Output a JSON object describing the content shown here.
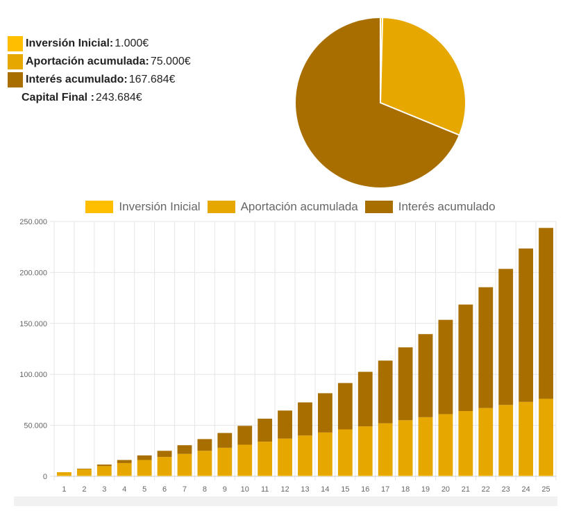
{
  "summary": {
    "initial_label": "Inversión Inicial:",
    "initial_value": "1.000€",
    "contrib_label": "Aportación acumulada:",
    "contrib_value": "75.000€",
    "interest_label": "Interés acumulado:",
    "interest_value": "167.684€",
    "final_label": "Capital Final :",
    "final_value": "243.684€"
  },
  "colors": {
    "initial": "#FFBE00",
    "contrib": "#E6A800",
    "interest": "#A86E00",
    "grid": "#e5e5e5",
    "tick": "#666666"
  },
  "chart_data": [
    {
      "type": "pie",
      "categories": [
        "Inversión Inicial",
        "Aportación acumulada",
        "Interés acumulado"
      ],
      "values": [
        1000,
        75000,
        167684
      ]
    },
    {
      "type": "bar",
      "stacked": true,
      "legend_position": "top",
      "grid": true,
      "categories": [
        "1",
        "2",
        "3",
        "4",
        "5",
        "6",
        "7",
        "8",
        "9",
        "10",
        "11",
        "12",
        "13",
        "14",
        "15",
        "16",
        "17",
        "18",
        "19",
        "20",
        "21",
        "22",
        "23",
        "24",
        "25"
      ],
      "series": [
        {
          "name": "Inversión Inicial",
          "values": [
            1000,
            1000,
            1000,
            1000,
            1000,
            1000,
            1000,
            1000,
            1000,
            1000,
            1000,
            1000,
            1000,
            1000,
            1000,
            1000,
            1000,
            1000,
            1000,
            1000,
            1000,
            1000,
            1000,
            1000,
            1000
          ]
        },
        {
          "name": "Aportación acumulada",
          "values": [
            3000,
            6000,
            9000,
            12000,
            15000,
            18000,
            21000,
            24000,
            27000,
            30000,
            33000,
            36000,
            39000,
            42000,
            45000,
            48000,
            51000,
            54000,
            57000,
            60000,
            63000,
            66000,
            69000,
            72000,
            75000
          ]
        },
        {
          "name": "Interés acumulado",
          "values": [
            0,
            500,
            1500,
            3000,
            4500,
            6000,
            8500,
            11500,
            14500,
            18500,
            22500,
            27500,
            32500,
            38500,
            45500,
            53500,
            61500,
            71500,
            81500,
            92500,
            104500,
            118500,
            133500,
            150500,
            167684
          ]
        }
      ],
      "ylim": [
        0,
        250000
      ],
      "yticks": [
        0,
        50000,
        100000,
        150000,
        200000,
        250000
      ],
      "ytick_labels": [
        "0",
        "50.000",
        "100.000",
        "150.000",
        "200.000",
        "250.000"
      ]
    }
  ]
}
